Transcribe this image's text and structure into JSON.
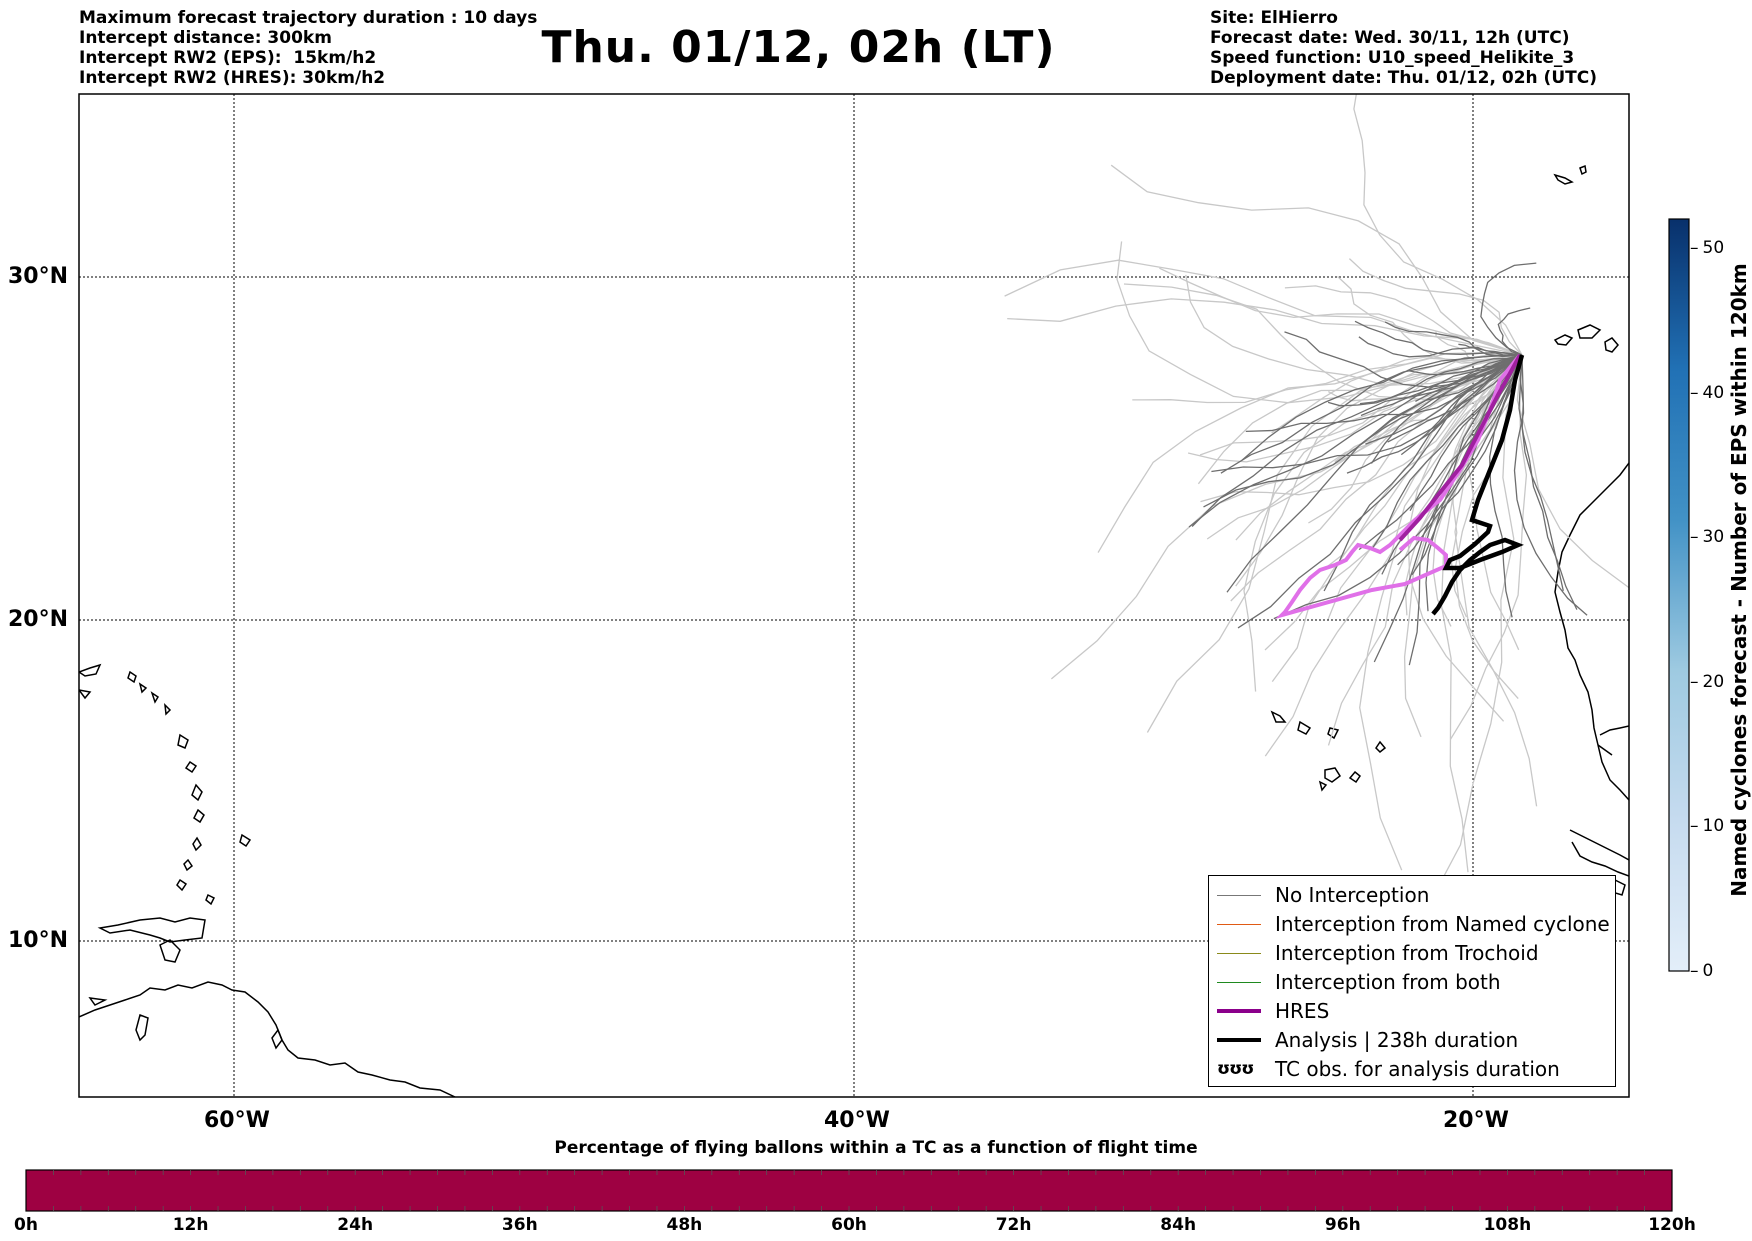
{
  "header_left": [
    "Maximum forecast trajectory duration : 10 days",
    "Intercept distance: 300km",
    "Intercept RW2 (EPS):  15km/h2",
    "Intercept RW2 (HRES): 30km/h2"
  ],
  "title": "Thu. 01/12, 02h (LT)",
  "header_right": [
    "Site: ElHierro",
    "Forecast date: Wed. 30/11, 12h (UTC)",
    "Speed function: U10_speed_Helikite_3",
    "Deployment date: Thu. 01/12, 02h (UTC)"
  ],
  "map": {
    "lat_labels": [
      "30°N",
      "20°N",
      "10°N"
    ],
    "lon_labels": [
      "60°W",
      "40°W",
      "20°W"
    ]
  },
  "legend": [
    {
      "label": "No Interception",
      "color": "#777777",
      "width": 1.5,
      "sym": "line"
    },
    {
      "label": "Interception from Named cyclone",
      "color": "#e05a14",
      "width": 1.5,
      "sym": "line"
    },
    {
      "label": "Interception from Trochoid",
      "color": "#8a8a1a",
      "width": 1.5,
      "sym": "line"
    },
    {
      "label": "Interception from both",
      "color": "#1f8a1f",
      "width": 1.5,
      "sym": "line"
    },
    {
      "label": "HRES",
      "color": "#8b008b",
      "width": 4,
      "sym": "line"
    },
    {
      "label": "Analysis | 238h duration",
      "color": "#000000",
      "width": 4,
      "sym": "line"
    },
    {
      "label": "TC obs. for analysis duration",
      "color": "#000000",
      "sym": "glyph",
      "glyph": "ʊʊʊ"
    }
  ],
  "colorbar": {
    "label": "Named cyclones forecast - Number of EPS within 120km",
    "ticks": [
      "0",
      "10",
      "20",
      "30",
      "40",
      "50"
    ],
    "max": 52,
    "color_low": "#e3eef9",
    "color_high": "#08306b"
  },
  "percent_bar": {
    "title": "Percentage of flying ballons within a TC as a function of flight time",
    "ticks": [
      "0h",
      "12h",
      "24h",
      "36h",
      "48h",
      "60h",
      "72h",
      "84h",
      "96h",
      "108h",
      "120h"
    ],
    "color": "#9e0142"
  }
}
